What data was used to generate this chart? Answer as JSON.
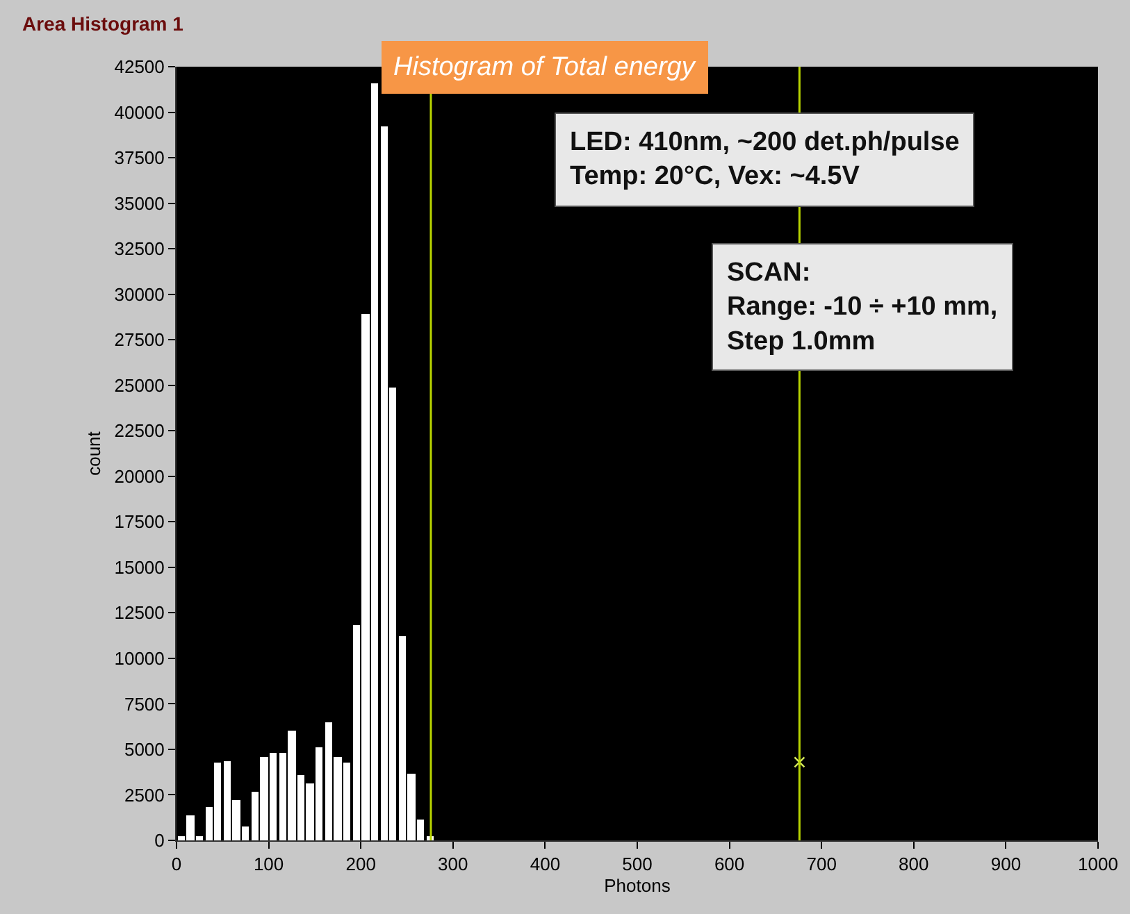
{
  "chart_data": {
    "type": "histogram",
    "title": "Histogram of Total energy",
    "xlabel": "Photons",
    "ylabel": "count",
    "bins": [
      0,
      10,
      20,
      30,
      40,
      50,
      60,
      70,
      80,
      90,
      100,
      110,
      120,
      130,
      140,
      150,
      160,
      170,
      180,
      190,
      200,
      210,
      220,
      230,
      240,
      250,
      260,
      270,
      280
    ],
    "values": [
      200,
      1400,
      200,
      1850,
      4250,
      4350,
      2250,
      800,
      2700,
      4550,
      4800,
      4800,
      6050,
      3600,
      3100,
      5100,
      6450,
      4550,
      4250,
      11850,
      28900,
      41600,
      39200,
      24900,
      11200,
      3700,
      1150,
      250
    ],
    "color": "#ffffff",
    "series": [
      {
        "type": "scatter",
        "x": [
          676
        ],
        "values": [
          4300
        ],
        "color": "#d4e85a",
        "marker": "cross"
      }
    ],
    "xlim": [
      0,
      1000
    ],
    "xticks": [
      0,
      100,
      200,
      300,
      400,
      500,
      600,
      700,
      800,
      900,
      1000
    ],
    "ylim": [
      0,
      42500
    ],
    "yticks": [
      0,
      2500,
      5000,
      7500,
      10000,
      12500,
      15000,
      17500,
      20000,
      22500,
      25000,
      27500,
      30000,
      32500,
      35000,
      37500,
      40000,
      42500
    ],
    "grid": false,
    "legend": false,
    "ref_lines": [
      {
        "axis": "x",
        "value": 276,
        "color": "#b8d400"
      },
      {
        "axis": "x",
        "value": 676,
        "color": "#b8d400"
      }
    ],
    "annotations": [
      "Area Histogram 1",
      "LED: 410nm, ~200 det.ph/pulse\nTemp: 20°C, Vex: ~4.5V",
      "SCAN:\nRange: -10 ÷ +10 mm,\nStep 1.0mm"
    ]
  }
}
